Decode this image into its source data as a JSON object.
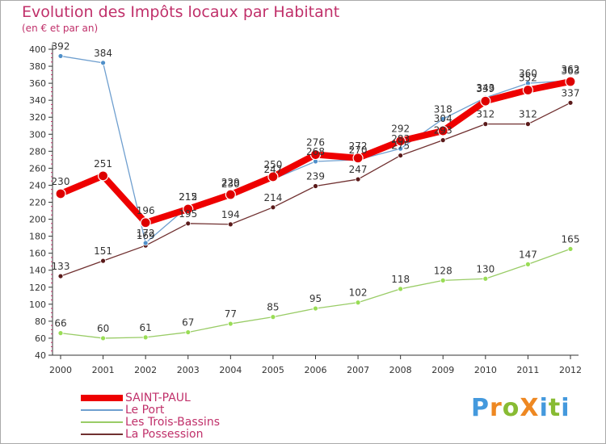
{
  "title": "Evolution des Impôts locaux par Habitant",
  "subtitle": "(en € et par an)",
  "brand": "ProXiti",
  "chart_data": {
    "type": "line",
    "title": "Evolution des Impôts locaux par Habitant",
    "subtitle": "(en € et par an)",
    "xlabel": "",
    "ylabel": "",
    "ylim": [
      40,
      400
    ],
    "ytick_step": 20,
    "grid": false,
    "legend_position": "bottom-left",
    "categories": [
      "2000",
      "2001",
      "2002",
      "2003",
      "2004",
      "2005",
      "2006",
      "2007",
      "2008",
      "2009",
      "2010",
      "2011",
      "2012"
    ],
    "series": [
      {
        "name": "SAINT-PAUL",
        "color": "#ee0000",
        "values": [
          230,
          251,
          196,
          212,
          229,
          250,
          276,
          272,
          292,
          304,
          339,
          352,
          362
        ]
      },
      {
        "name": "Le Port",
        "color": "#6f9fcf",
        "values": [
          392,
          384,
          172,
          215,
          230,
          247,
          268,
          270,
          283,
          318,
          343,
          360,
          363
        ]
      },
      {
        "name": "Les Trois-Bassins",
        "color": "#99cc66",
        "values": [
          66,
          60,
          61,
          67,
          77,
          85,
          95,
          102,
          118,
          128,
          130,
          147,
          165
        ]
      },
      {
        "name": "La Possession",
        "color": "#703030",
        "values": [
          133,
          151,
          169,
          195,
          194,
          214,
          239,
          247,
          275,
          293,
          312,
          312,
          337
        ]
      }
    ]
  },
  "colors": {
    "title": "#c0306a",
    "axis": "#333333",
    "brand_p": "#4499dd",
    "brand_r": "#ee8822",
    "brand_o": "#88bb33",
    "brand_x": "#ee8822",
    "brand_i": "#4499dd",
    "brand_t": "#88bb33"
  }
}
